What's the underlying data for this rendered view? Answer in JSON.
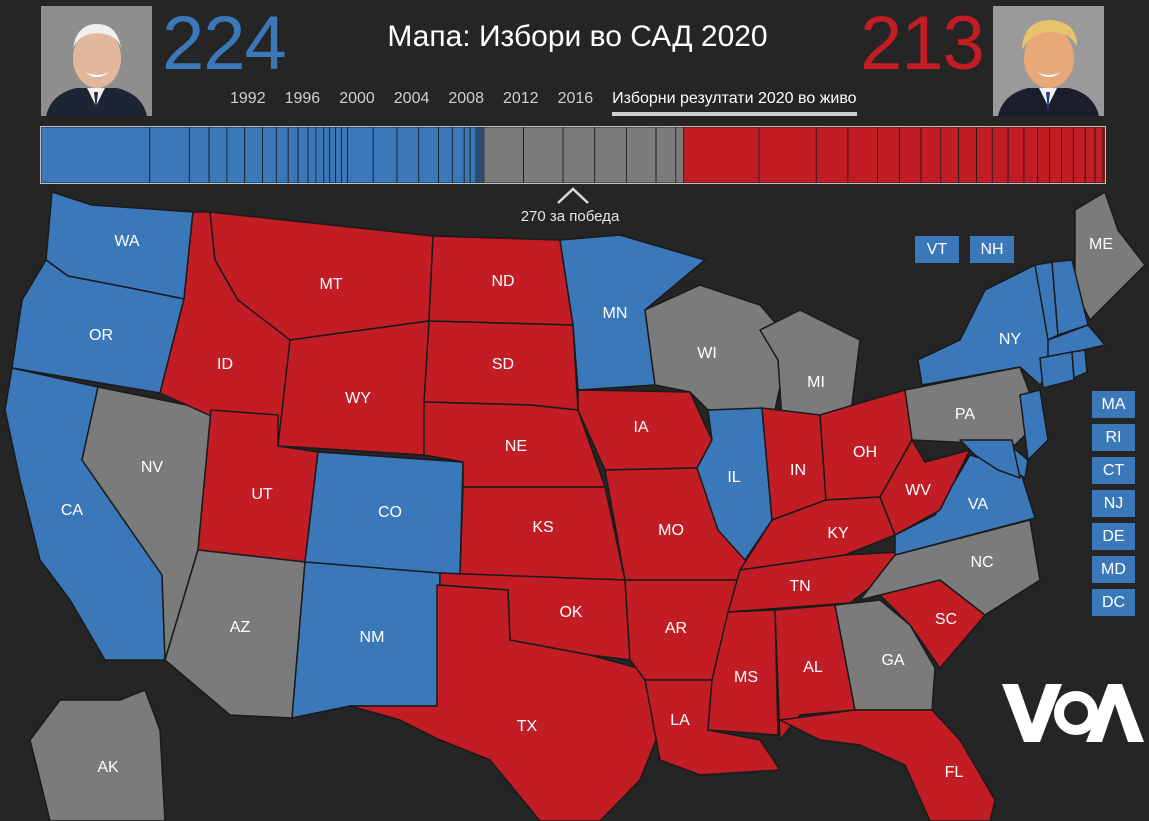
{
  "title": "Мапа: Избори во САД 2020",
  "dem": {
    "votes": "224",
    "color": "#3b78b9",
    "portrait": "dem-candidate-portrait"
  },
  "rep": {
    "votes": "213",
    "color": "#c21d25",
    "portrait": "rep-candidate-portrait"
  },
  "tossup_color": "#7b7b7b",
  "years": [
    "1992",
    "1996",
    "2000",
    "2004",
    "2008",
    "2012",
    "2016"
  ],
  "live_year_label": "Изборни резултати 2020 во живо",
  "win_label": "270 за победа",
  "map_states": [
    {
      "code": "WA",
      "party": "D"
    },
    {
      "code": "OR",
      "party": "D"
    },
    {
      "code": "CA",
      "party": "D"
    },
    {
      "code": "NV",
      "party": "T"
    },
    {
      "code": "ID",
      "party": "R"
    },
    {
      "code": "MT",
      "party": "R"
    },
    {
      "code": "WY",
      "party": "R"
    },
    {
      "code": "UT",
      "party": "R"
    },
    {
      "code": "AZ",
      "party": "T"
    },
    {
      "code": "CO",
      "party": "D"
    },
    {
      "code": "NM",
      "party": "D"
    },
    {
      "code": "ND",
      "party": "R"
    },
    {
      "code": "SD",
      "party": "R"
    },
    {
      "code": "NE",
      "party": "R"
    },
    {
      "code": "KS",
      "party": "R"
    },
    {
      "code": "OK",
      "party": "R"
    },
    {
      "code": "TX",
      "party": "R"
    },
    {
      "code": "MN",
      "party": "D"
    },
    {
      "code": "IA",
      "party": "R"
    },
    {
      "code": "MO",
      "party": "R"
    },
    {
      "code": "AR",
      "party": "R"
    },
    {
      "code": "LA",
      "party": "R"
    },
    {
      "code": "WI",
      "party": "T"
    },
    {
      "code": "IL",
      "party": "D"
    },
    {
      "code": "MI",
      "party": "T"
    },
    {
      "code": "IN",
      "party": "R"
    },
    {
      "code": "OH",
      "party": "R"
    },
    {
      "code": "KY",
      "party": "R"
    },
    {
      "code": "TN",
      "party": "R"
    },
    {
      "code": "MS",
      "party": "R"
    },
    {
      "code": "AL",
      "party": "R"
    },
    {
      "code": "GA",
      "party": "T"
    },
    {
      "code": "FL",
      "party": "R"
    },
    {
      "code": "SC",
      "party": "R"
    },
    {
      "code": "NC",
      "party": "T"
    },
    {
      "code": "VA",
      "party": "D"
    },
    {
      "code": "WV",
      "party": "R"
    },
    {
      "code": "PA",
      "party": "T"
    },
    {
      "code": "NY",
      "party": "D"
    },
    {
      "code": "ME",
      "party": "T"
    },
    {
      "code": "AK",
      "party": "T"
    }
  ],
  "small_states": [
    "VT",
    "NH",
    "MA",
    "RI",
    "CT",
    "NJ",
    "DE",
    "MD",
    "DC"
  ],
  "logo_text": "VOA"
}
